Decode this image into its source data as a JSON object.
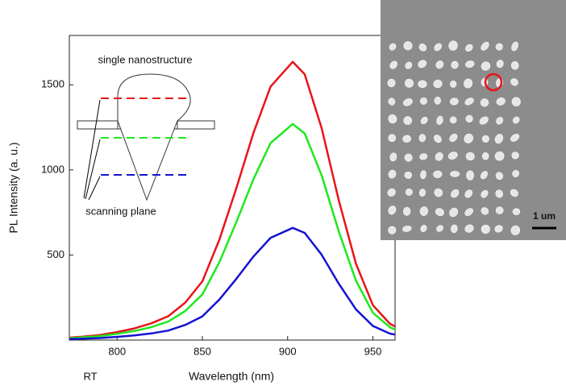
{
  "chart_data": {
    "type": "line",
    "x_label": "Wavelength (nm)",
    "y_label": "PL Intensity (a. u.)",
    "x": [
      772,
      780,
      790,
      800,
      810,
      820,
      830,
      840,
      850,
      860,
      870,
      880,
      890,
      903,
      910,
      920,
      930,
      940,
      950,
      960,
      963
    ],
    "series": [
      {
        "color": "#e8141a",
        "values": [
          14,
          20,
          30,
          47,
          68,
          98,
          140,
          220,
          345,
          590,
          895,
          1218,
          1490,
          1635,
          1562,
          1244,
          821,
          450,
          205,
          95,
          80
        ]
      },
      {
        "color": "#1ee81e",
        "values": [
          11,
          16,
          23,
          37,
          53,
          76,
          109,
          171,
          268,
          458,
          695,
          946,
          1158,
          1270,
          1214,
          967,
          638,
          350,
          160,
          75,
          62
        ]
      },
      {
        "color": "#1414d2",
        "values": [
          6,
          8,
          12,
          19,
          27,
          39,
          56,
          89,
          139,
          238,
          361,
          491,
          601,
          659,
          630,
          501,
          331,
          181,
          83,
          38,
          32
        ]
      }
    ],
    "xlim": [
      772,
      963
    ],
    "ylim": [
      0,
      1790
    ],
    "xticks": [
      800,
      850,
      900,
      950
    ],
    "yticks": [
      500,
      1000,
      1500
    ],
    "grid": false,
    "annotations": [
      "single nanostructure",
      "scanning plane",
      "RT",
      "1 um"
    ]
  }
}
